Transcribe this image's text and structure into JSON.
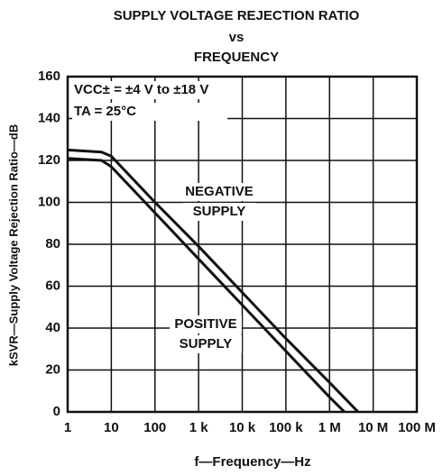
{
  "chart_data": {
    "type": "line",
    "title": [
      "SUPPLY VOLTAGE REJECTION RATIO",
      "vs",
      "FREQUENCY"
    ],
    "x_label": "f—Frequency—Hz",
    "y_label": "kSVR—Supply Voltage Rejection Ratio—dB",
    "x_scale": "log",
    "xlim": [
      1,
      100000000
    ],
    "xticks": [
      1,
      10,
      100,
      {
        "value": 1000,
        "label": "1 k"
      },
      {
        "value": 10000,
        "label": "10 k"
      },
      {
        "value": 100000,
        "label": "100 k"
      },
      {
        "value": 1000000,
        "label": "1 M"
      },
      {
        "value": 10000000,
        "label": "10 M"
      },
      {
        "value": 100000000,
        "label": "100 M"
      }
    ],
    "ylim": [
      0,
      160
    ],
    "yticks": [
      0,
      20,
      40,
      60,
      80,
      100,
      120,
      140,
      160
    ],
    "grid": true,
    "annotations": [
      [
        "VCC± = ±4 V to ±18 V"
      ],
      [
        "TA = 25°C"
      ],
      [
        "NEGATIVE",
        "SUPPLY"
      ],
      [
        "POSITIVE",
        "SUPPLY"
      ]
    ],
    "series": [
      {
        "color": "#111111",
        "x": [
          1,
          6,
          10,
          100,
          1000,
          10000,
          100000,
          1000000,
          4500000
        ],
        "values": [
          125,
          124,
          122,
          100,
          79,
          57,
          35,
          14,
          0
        ]
      },
      {
        "color": "#111111",
        "x": [
          1,
          6,
          10,
          100,
          1000,
          10000,
          100000,
          1000000,
          2200000
        ],
        "values": [
          121,
          120,
          117,
          95,
          73,
          51,
          29,
          7,
          0
        ]
      }
    ]
  }
}
